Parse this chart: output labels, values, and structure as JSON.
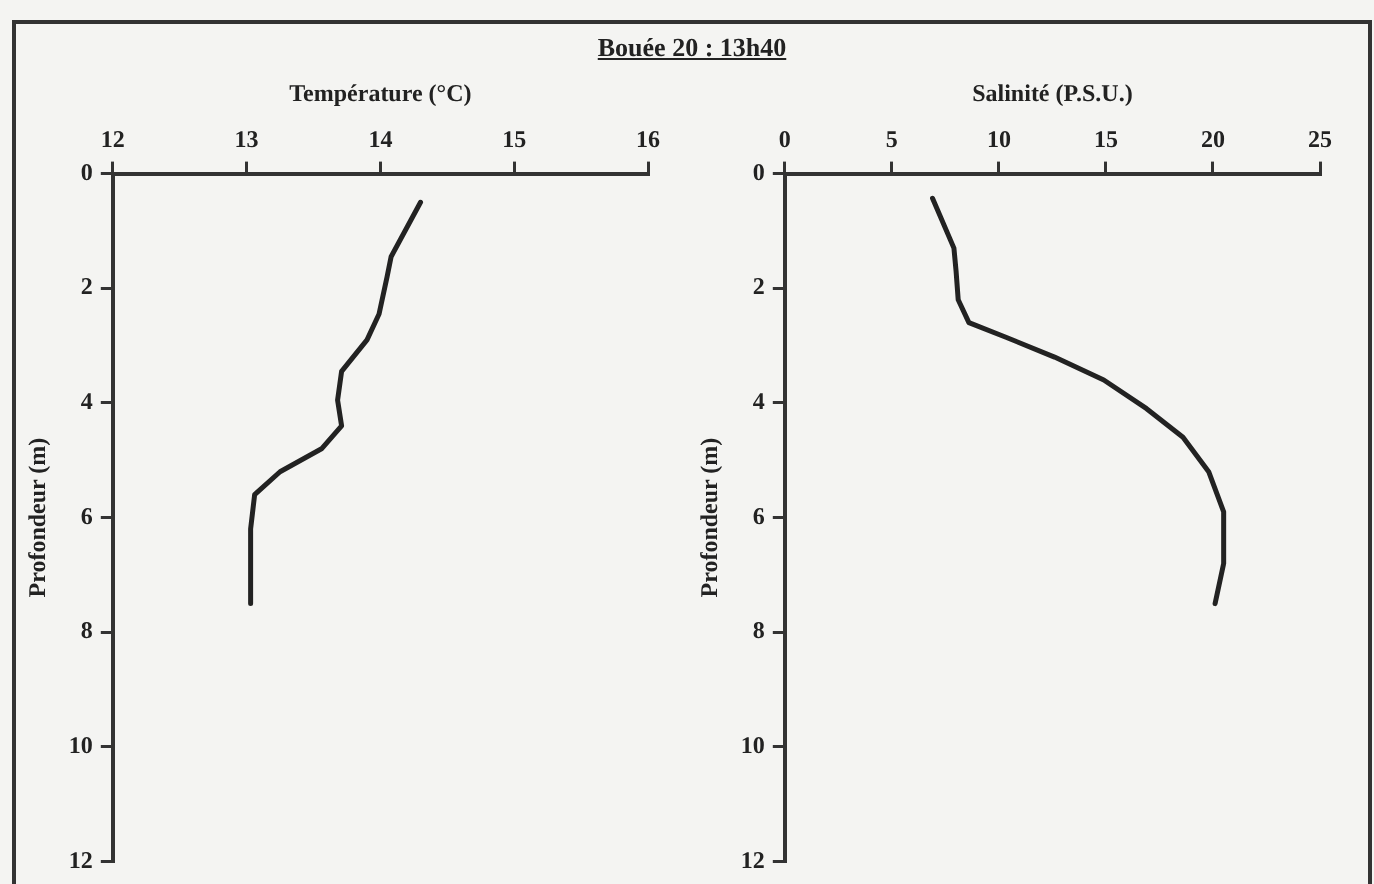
{
  "chart_data": [
    {
      "type": "line",
      "title": "Bouée 20 : 13h40",
      "xlabel": "Température (°C)",
      "ylabel": "Profondeur (m)",
      "xlim": [
        12,
        16
      ],
      "xticks": [
        12,
        13,
        14,
        15,
        16
      ],
      "ylim": [
        12,
        0
      ],
      "yticks": [
        0,
        2,
        4,
        6,
        8,
        10,
        12
      ],
      "grid": false,
      "legend": false,
      "marker": "none",
      "line_style": "solid",
      "series": [
        {
          "color": "#222222",
          "x": [
            14.3,
            14.08,
            14.05,
            13.99,
            13.9,
            13.71,
            13.68,
            13.71,
            13.56,
            13.25,
            13.06,
            13.03,
            13.03
          ],
          "values": [
            0.5,
            1.45,
            1.8,
            2.45,
            2.9,
            3.45,
            3.95,
            4.4,
            4.8,
            5.2,
            5.6,
            6.2,
            7.5
          ]
        }
      ]
    },
    {
      "type": "line",
      "xlabel": "Salinité (P.S.U.)",
      "ylabel": "Profondeur (m)",
      "xlim": [
        0,
        25
      ],
      "xticks": [
        0,
        5,
        10,
        15,
        20,
        25
      ],
      "ylim": [
        12,
        0
      ],
      "yticks": [
        0,
        2,
        4,
        6,
        8,
        10,
        12
      ],
      "grid": false,
      "legend": false,
      "marker": "none",
      "line_style": "solid",
      "series": [
        {
          "color": "#222222",
          "x": [
            6.9,
            7.9,
            8.0,
            8.1,
            8.6,
            10.3,
            12.6,
            14.9,
            16.9,
            18.6,
            19.8,
            20.5,
            20.5,
            20.1
          ],
          "values": [
            0.43,
            1.3,
            1.7,
            2.2,
            2.6,
            2.85,
            3.2,
            3.6,
            4.1,
            4.6,
            5.2,
            5.9,
            6.8,
            7.5
          ]
        }
      ]
    }
  ]
}
